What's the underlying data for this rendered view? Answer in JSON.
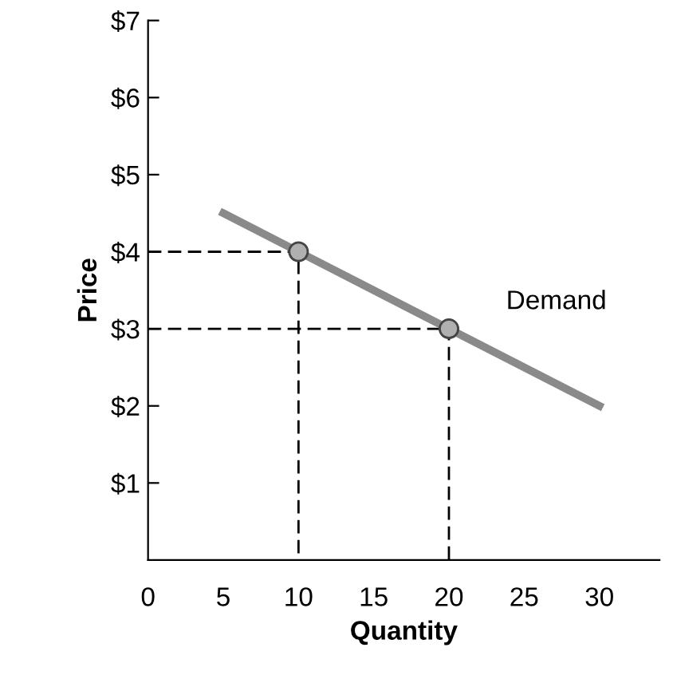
{
  "chart_data": {
    "type": "line",
    "xlabel": "Quantity",
    "ylabel": "Price",
    "series": [
      {
        "color": "#8a8a8a",
        "x": [
          5,
          10,
          20,
          30
        ],
        "values": [
          4.5,
          4,
          3,
          2
        ],
        "marker": "none",
        "line_style": "solid"
      },
      {
        "type": "scatter",
        "color": "#b0b0b0",
        "x": [
          10,
          20
        ],
        "values": [
          4,
          3
        ],
        "marker": "circle"
      },
      {
        "color": "#000000",
        "x": [
          0,
          10,
          10
        ],
        "values": [
          4,
          4,
          0
        ],
        "marker": "none",
        "line_style": "dashed"
      },
      {
        "color": "#000000",
        "x": [
          0,
          20,
          20
        ],
        "values": [
          3,
          3,
          0
        ],
        "marker": "none",
        "line_style": "dashed"
      }
    ],
    "annotations": [
      "Demand"
    ],
    "xlim": [
      0,
      34
    ],
    "xticks": [
      0,
      5,
      10,
      15,
      20,
      25,
      30
    ],
    "ylim": [
      0,
      7
    ],
    "yticks": [
      {
        "value": 1,
        "label": "$1"
      },
      {
        "value": 2,
        "label": "$2"
      },
      {
        "value": 3,
        "label": "$3"
      },
      {
        "value": 4,
        "label": "$4"
      },
      {
        "value": 5,
        "label": "$5"
      },
      {
        "value": 6,
        "label": "$6"
      },
      {
        "value": 7,
        "label": "$7"
      }
    ],
    "grid": false,
    "legend": false
  }
}
